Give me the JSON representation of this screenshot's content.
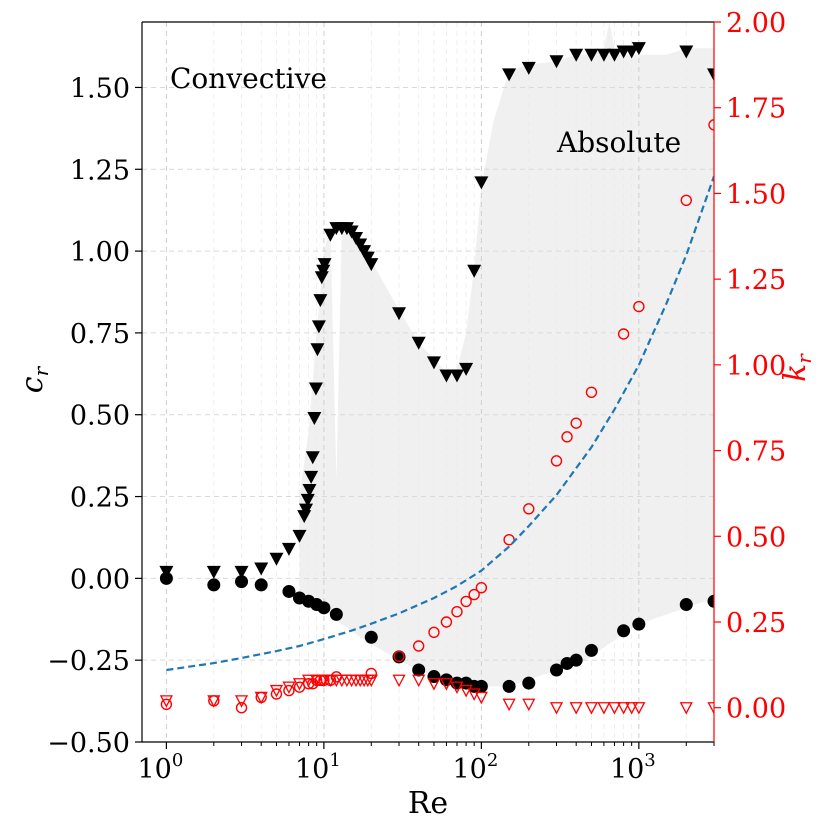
{
  "chart_data": {
    "type": "scatter",
    "title": "",
    "x_scale": "log",
    "xlim": [
      0.7,
      3000
    ],
    "xlabel": "Re",
    "x_ticks": [
      {
        "value": 1,
        "base": "10",
        "exp": "0"
      },
      {
        "value": 10,
        "base": "10",
        "exp": "1"
      },
      {
        "value": 100,
        "base": "10",
        "exp": "2"
      },
      {
        "value": 1000,
        "base": "10",
        "exp": "3"
      }
    ],
    "left_axis": {
      "label_main": "c",
      "label_sub": "r",
      "ylim": [
        -0.5,
        1.7
      ],
      "ticks": [
        {
          "value": -0.5,
          "label": "−0.50"
        },
        {
          "value": -0.25,
          "label": "−0.25"
        },
        {
          "value": 0.0,
          "label": "0.00"
        },
        {
          "value": 0.25,
          "label": "0.25"
        },
        {
          "value": 0.5,
          "label": "0.50"
        },
        {
          "value": 0.75,
          "label": "0.75"
        },
        {
          "value": 1.0,
          "label": "1.00"
        },
        {
          "value": 1.25,
          "label": "1.25"
        },
        {
          "value": 1.5,
          "label": "1.50"
        }
      ],
      "color": "#000000"
    },
    "right_axis": {
      "label_main": "k",
      "label_sub": "r",
      "ylim": [
        -0.1,
        2.0
      ],
      "ticks": [
        {
          "value": 0.0,
          "label": "0.00"
        },
        {
          "value": 0.25,
          "label": "0.25"
        },
        {
          "value": 0.5,
          "label": "0.50"
        },
        {
          "value": 0.75,
          "label": "0.75"
        },
        {
          "value": 1.0,
          "label": "1.00"
        },
        {
          "value": 1.25,
          "label": "1.25"
        },
        {
          "value": 1.5,
          "label": "1.50"
        },
        {
          "value": 1.75,
          "label": "1.75"
        },
        {
          "value": 2.0,
          "label": "2.00"
        }
      ],
      "color": "#ff0000"
    },
    "grid": true,
    "annotations": [
      {
        "text": "Convective",
        "x": 1,
        "y": 1.52,
        "axis": "left"
      },
      {
        "text": "Absolute",
        "x": 300,
        "y": 1.31,
        "axis": "left"
      }
    ],
    "shaded_region": {
      "name": "Absolute region",
      "color": "#f0f0f0",
      "x": [
        7,
        8,
        9,
        10,
        11,
        12,
        13,
        14,
        15,
        17,
        20,
        30,
        40,
        50,
        60,
        70,
        80,
        90,
        100,
        120,
        150,
        200,
        300,
        400,
        500,
        600,
        650,
        700,
        800,
        1000,
        1500,
        2000,
        3000
      ],
      "upper": [
        0.25,
        0.45,
        0.75,
        1.0,
        1.07,
        0.3,
        1.07,
        1.08,
        1.08,
        1.04,
        0.97,
        0.82,
        0.72,
        0.67,
        0.63,
        0.64,
        0.75,
        0.95,
        1.2,
        1.4,
        1.55,
        1.57,
        1.58,
        1.6,
        1.6,
        1.62,
        1.7,
        1.62,
        1.6,
        1.6,
        1.6,
        1.62,
        1.62
      ],
      "lower": [
        -0.05,
        -0.07,
        -0.09,
        -0.1,
        -0.11,
        -0.13,
        -0.14,
        -0.15,
        -0.16,
        -0.18,
        -0.2,
        -0.25,
        -0.28,
        -0.3,
        -0.31,
        -0.32,
        -0.33,
        -0.33,
        -0.33,
        -0.33,
        -0.33,
        -0.31,
        -0.28,
        -0.26,
        -0.24,
        -0.21,
        -0.2,
        -0.19,
        -0.17,
        -0.14,
        -0.11,
        -0.09,
        -0.06
      ]
    },
    "series": [
      {
        "name": "c_r absolute (filled triangles)",
        "axis": "left",
        "marker": "triangle-down-filled",
        "color": "#000000",
        "x": [
          1,
          2,
          3,
          4,
          5,
          6,
          7,
          7.5,
          7.7,
          7.9,
          8.1,
          8.3,
          8.5,
          8.7,
          8.9,
          9.1,
          9.3,
          9.5,
          9.7,
          9.9,
          10.1,
          11,
          12,
          13,
          14,
          15,
          16,
          17,
          18,
          19,
          20,
          30,
          40,
          50,
          60,
          70,
          80,
          90,
          100,
          150,
          200,
          300,
          400,
          500,
          600,
          700,
          800,
          900,
          1000,
          2000,
          3000
        ],
        "y": [
          0.02,
          0.02,
          0.02,
          0.03,
          0.06,
          0.09,
          0.13,
          0.19,
          0.21,
          0.24,
          0.27,
          0.31,
          0.37,
          0.49,
          0.58,
          0.7,
          0.77,
          0.85,
          0.92,
          0.94,
          0.96,
          1.05,
          1.07,
          1.07,
          1.07,
          1.06,
          1.04,
          1.02,
          1.0,
          0.98,
          0.96,
          0.81,
          0.72,
          0.66,
          0.62,
          0.62,
          0.64,
          0.94,
          1.21,
          1.54,
          1.56,
          1.58,
          1.6,
          1.6,
          1.6,
          1.6,
          1.61,
          1.61,
          1.62,
          1.61,
          1.54
        ]
      },
      {
        "name": "c_r convective (filled circles)",
        "axis": "left",
        "marker": "circle-filled",
        "color": "#000000",
        "x": [
          1,
          2,
          3,
          4,
          6,
          7,
          8,
          9,
          10,
          12,
          20,
          30,
          40,
          50,
          60,
          70,
          80,
          90,
          100,
          150,
          200,
          300,
          350,
          400,
          500,
          800,
          1000,
          2000,
          3000
        ],
        "y": [
          0.0,
          -0.02,
          -0.01,
          -0.02,
          -0.04,
          -0.06,
          -0.07,
          -0.08,
          -0.09,
          -0.11,
          -0.18,
          -0.24,
          -0.28,
          -0.3,
          -0.31,
          -0.32,
          -0.32,
          -0.33,
          -0.33,
          -0.33,
          -0.32,
          -0.28,
          -0.26,
          -0.25,
          -0.22,
          -0.16,
          -0.14,
          -0.08,
          -0.07
        ]
      },
      {
        "name": "k_r convective (open circles)",
        "axis": "right",
        "marker": "circle-open",
        "color": "#ff0000",
        "x": [
          1,
          2,
          3,
          4,
          5,
          6,
          7,
          8,
          8.5,
          9,
          9.5,
          10,
          11,
          12,
          20,
          30,
          40,
          50,
          60,
          70,
          80,
          90,
          100,
          150,
          200,
          300,
          350,
          400,
          500,
          800,
          1000,
          2000,
          3000
        ],
        "y": [
          0.01,
          0.02,
          0.0,
          0.03,
          0.04,
          0.05,
          0.06,
          0.07,
          0.07,
          0.08,
          0.08,
          0.08,
          0.08,
          0.09,
          0.1,
          0.15,
          0.18,
          0.22,
          0.25,
          0.28,
          0.31,
          0.33,
          0.35,
          0.49,
          0.58,
          0.72,
          0.79,
          0.83,
          0.92,
          1.09,
          1.17,
          1.48,
          1.7
        ]
      },
      {
        "name": "k_r absolute (open triangles)",
        "axis": "right",
        "marker": "triangle-down-open",
        "color": "#ff0000",
        "x": [
          1,
          2,
          3,
          4,
          5,
          6,
          7,
          8,
          9,
          10,
          11,
          12,
          13,
          14,
          15,
          16,
          17,
          18,
          19,
          20,
          30,
          40,
          50,
          60,
          70,
          80,
          90,
          100,
          150,
          200,
          300,
          400,
          500,
          600,
          700,
          800,
          900,
          1000,
          2000,
          3000
        ],
        "y": [
          0.02,
          0.02,
          0.02,
          0.03,
          0.05,
          0.06,
          0.07,
          0.08,
          0.08,
          0.08,
          0.08,
          0.08,
          0.08,
          0.08,
          0.08,
          0.08,
          0.08,
          0.08,
          0.08,
          0.08,
          0.08,
          0.08,
          0.07,
          0.07,
          0.06,
          0.05,
          0.04,
          0.03,
          0.01,
          0.01,
          0.0,
          0.0,
          0.0,
          0.0,
          0.0,
          0.0,
          0.0,
          0.0,
          0.0,
          0.0
        ]
      },
      {
        "name": "k_r fit (dashed line)",
        "axis": "right",
        "marker": "dashed-line",
        "color": "#1f77b4",
        "x": [
          1,
          2,
          3,
          5,
          7,
          10,
          15,
          20,
          30,
          50,
          70,
          100,
          150,
          200,
          300,
          500,
          700,
          1000,
          1500,
          2000,
          3000
        ],
        "y": [
          0.11,
          0.13,
          0.145,
          0.165,
          0.18,
          0.2,
          0.225,
          0.245,
          0.275,
          0.32,
          0.355,
          0.4,
          0.47,
          0.53,
          0.62,
          0.76,
          0.87,
          1.0,
          1.18,
          1.32,
          1.55
        ]
      }
    ]
  }
}
